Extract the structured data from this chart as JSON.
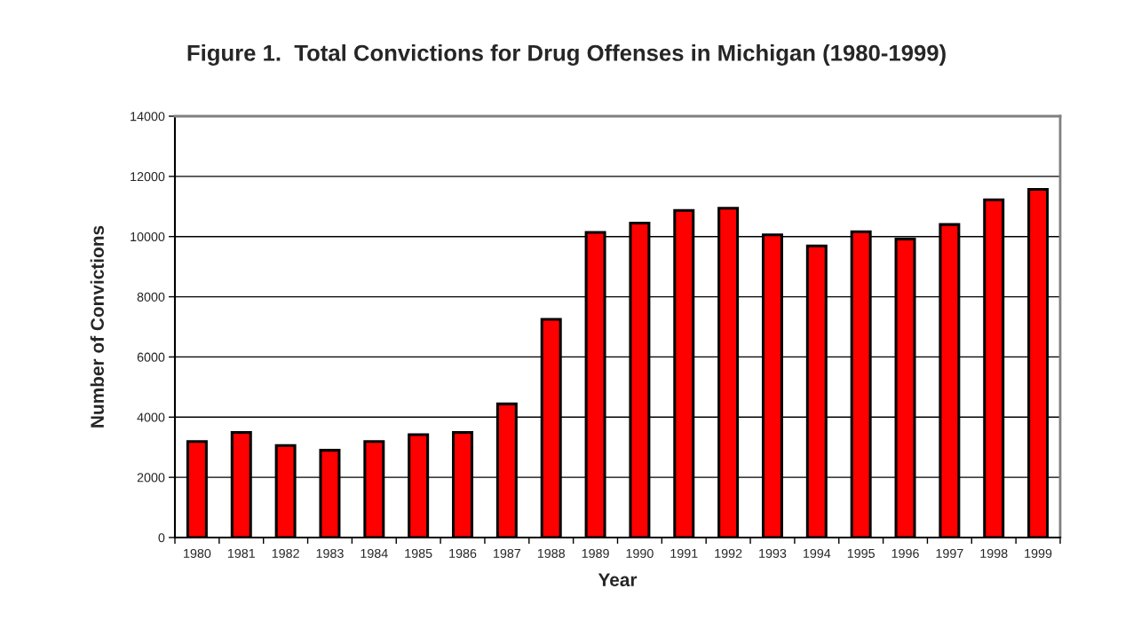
{
  "chart_data": {
    "type": "bar",
    "title": "Figure 1.  Total Convictions for Drug Offenses in Michigan (1980-1999)",
    "xlabel": "Year",
    "ylabel": "Number of Convictions",
    "categories": [
      "1980",
      "1981",
      "1982",
      "1983",
      "1984",
      "1985",
      "1986",
      "1987",
      "1988",
      "1989",
      "1990",
      "1991",
      "1992",
      "1993",
      "1994",
      "1995",
      "1996",
      "1997",
      "1998",
      "1999"
    ],
    "values": [
      3190,
      3490,
      3060,
      2900,
      3190,
      3420,
      3490,
      4440,
      7250,
      10140,
      10450,
      10870,
      10940,
      10060,
      9690,
      10160,
      9920,
      10400,
      11220,
      11570
    ],
    "color": "#ff0000",
    "ylim": [
      0,
      14000
    ],
    "yticks": [
      0,
      2000,
      4000,
      6000,
      8000,
      10000,
      12000,
      14000
    ],
    "grid": "y"
  }
}
